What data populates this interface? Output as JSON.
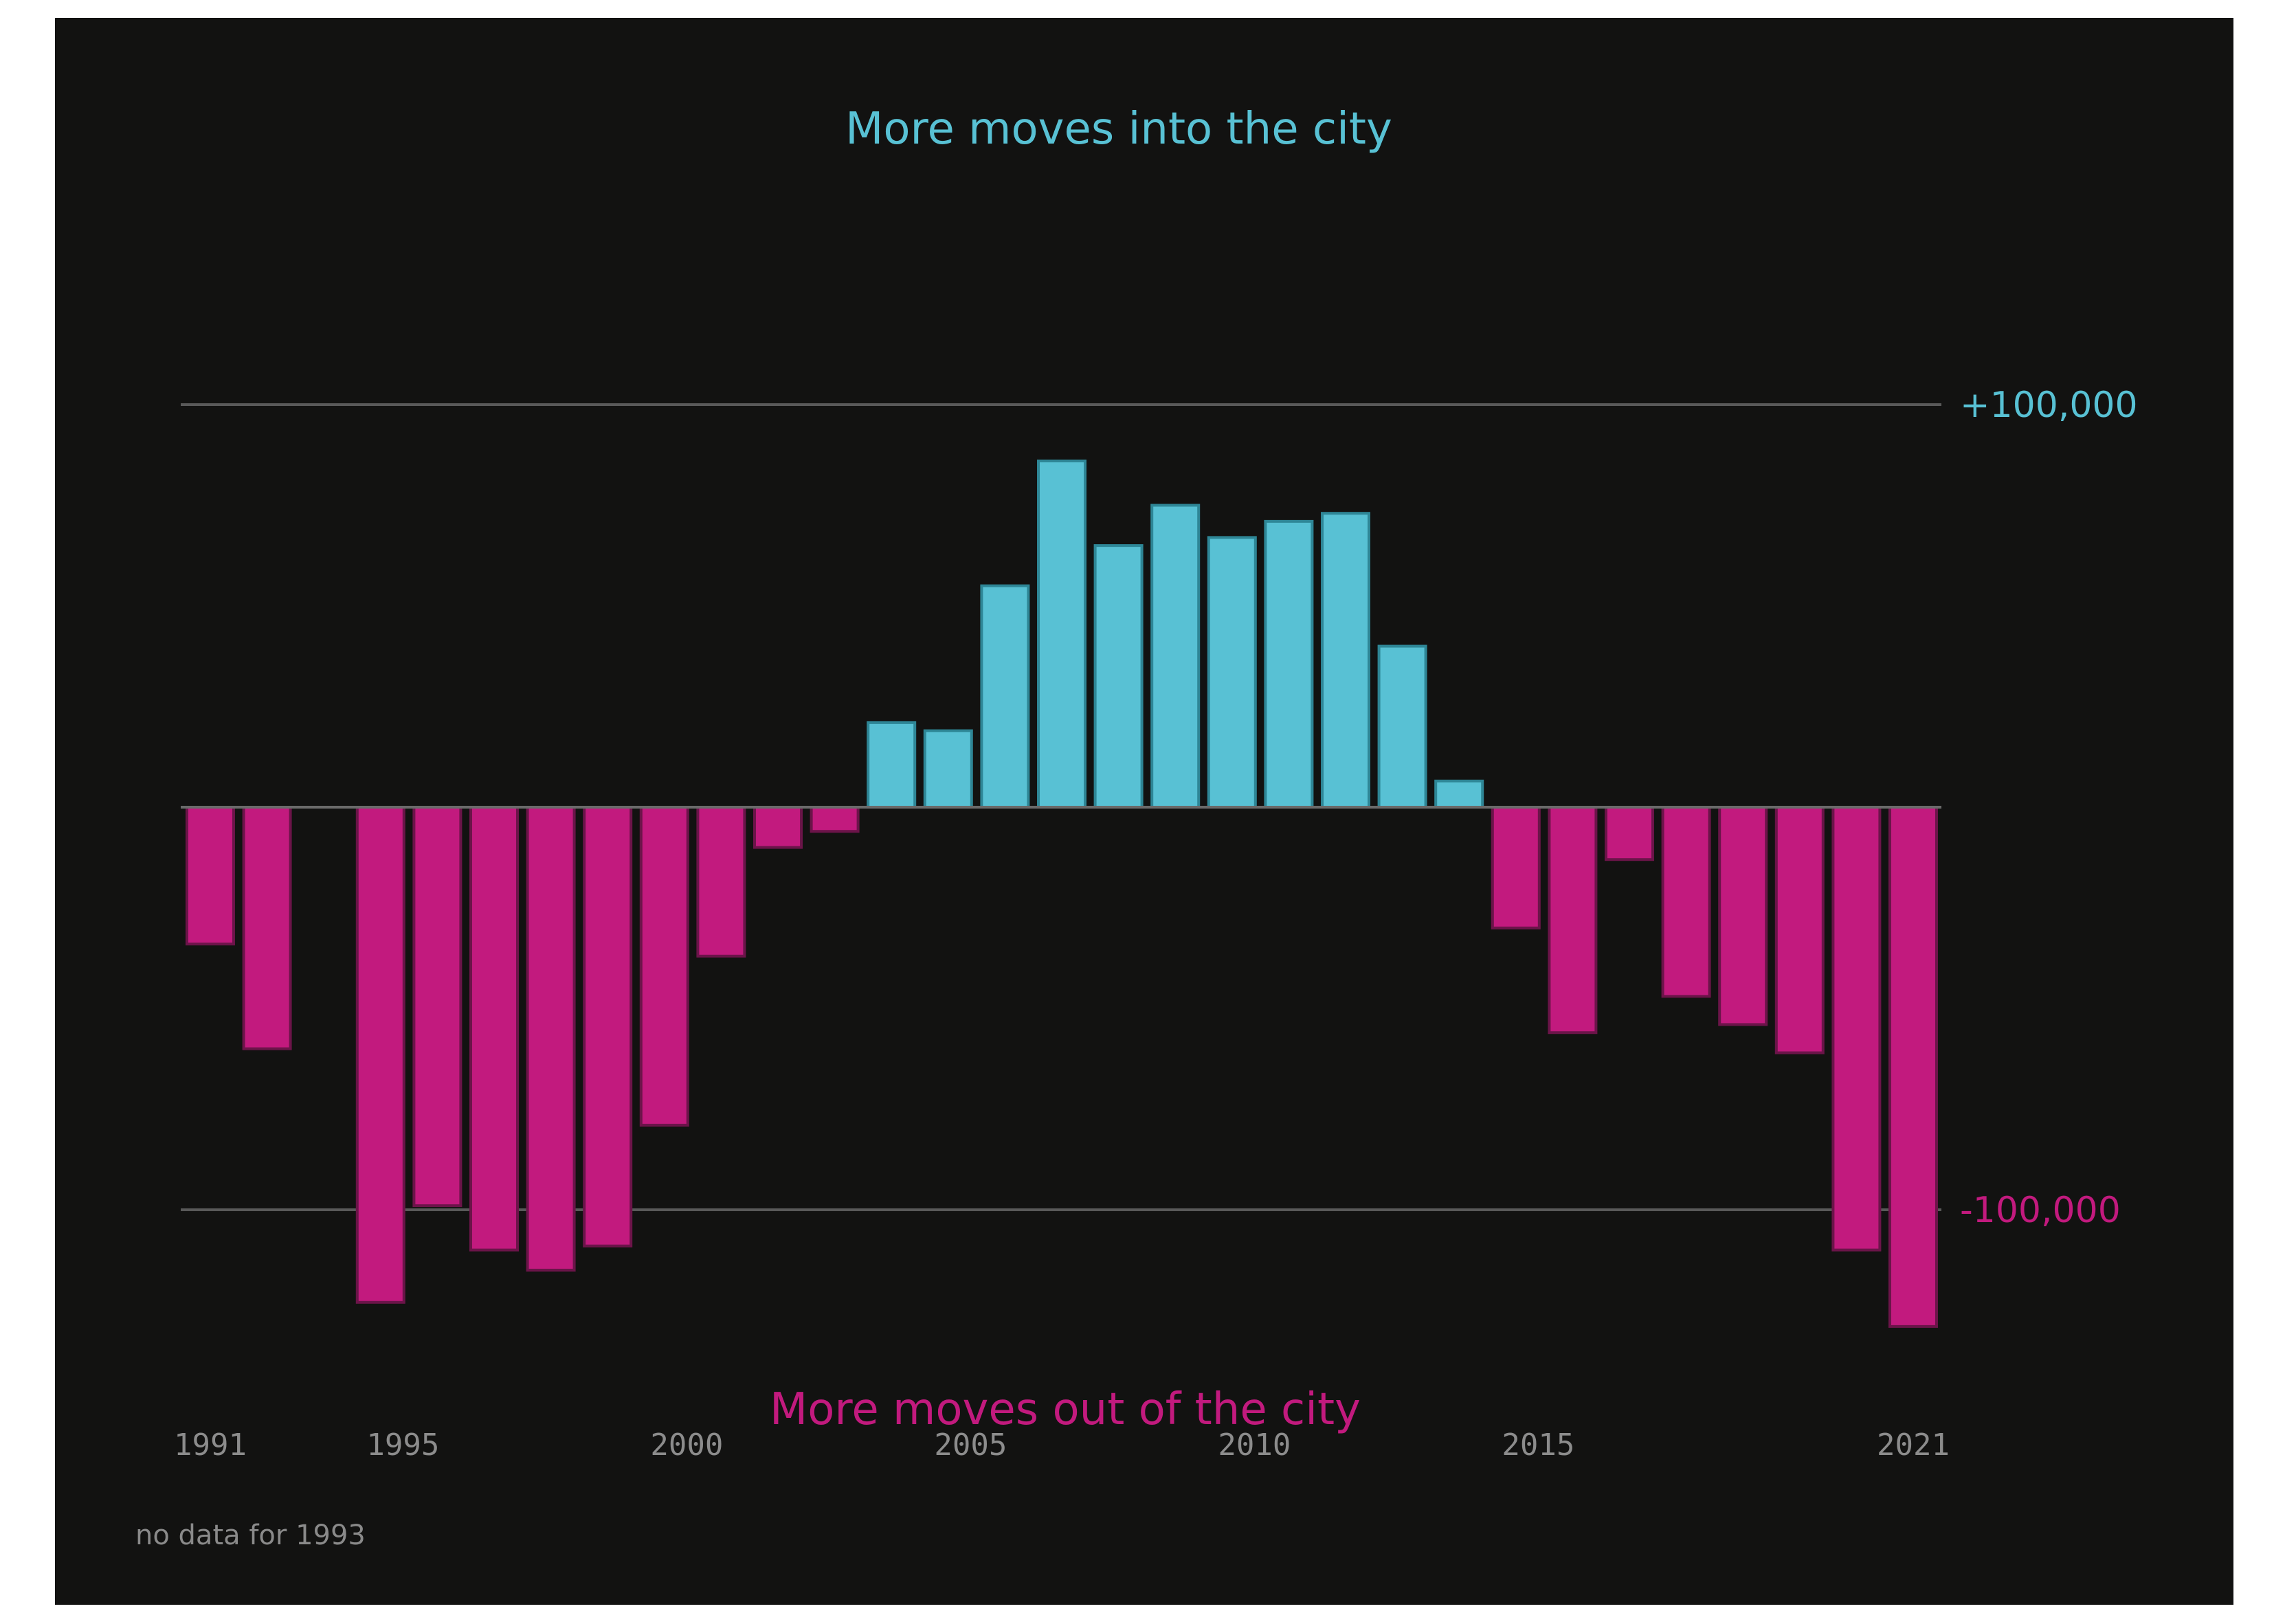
{
  "chart_data": {
    "type": "bar",
    "x": [
      1991,
      1992,
      1993,
      1994,
      1995,
      1996,
      1997,
      1998,
      1999,
      2000,
      2001,
      2002,
      2003,
      2004,
      2005,
      2006,
      2007,
      2008,
      2009,
      2010,
      2011,
      2012,
      2013,
      2014,
      2015,
      2016,
      2017,
      2018,
      2019,
      2020,
      2021
    ],
    "values": [
      -34000,
      -60000,
      null,
      -123000,
      -99000,
      -110000,
      -115000,
      -109000,
      -79000,
      -37000,
      -10000,
      -6000,
      21000,
      19000,
      55000,
      86000,
      65000,
      75000,
      67000,
      71000,
      73000,
      40000,
      6500,
      -30000,
      -56000,
      -13000,
      -47000,
      -54000,
      -61000,
      -110000,
      -129000
    ],
    "ylim": [
      -150000,
      150000
    ],
    "ref_lines": [
      {
        "value": 100000,
        "label": "+100,000",
        "color": "#58c1d4"
      },
      {
        "value": -100000,
        "label": "-100,000",
        "color": "#c21a7e"
      }
    ],
    "x_ticks": [
      {
        "value": 1991,
        "label": "1991"
      },
      {
        "value": 1995,
        "label": "1995"
      },
      {
        "value": 2000,
        "label": "2000"
      },
      {
        "value": 2005,
        "label": "2005"
      },
      {
        "value": 2010,
        "label": "2010"
      },
      {
        "value": 2015,
        "label": "2015"
      },
      {
        "value": 2021,
        "label": "2021"
      }
    ],
    "annotations": {
      "top": "More moves into the city",
      "bottom": "More moves out of the city"
    },
    "note": "no data for 1993",
    "colors": {
      "positive": "#58c1d4",
      "negative": "#c21a7e",
      "background": "#121211"
    }
  }
}
